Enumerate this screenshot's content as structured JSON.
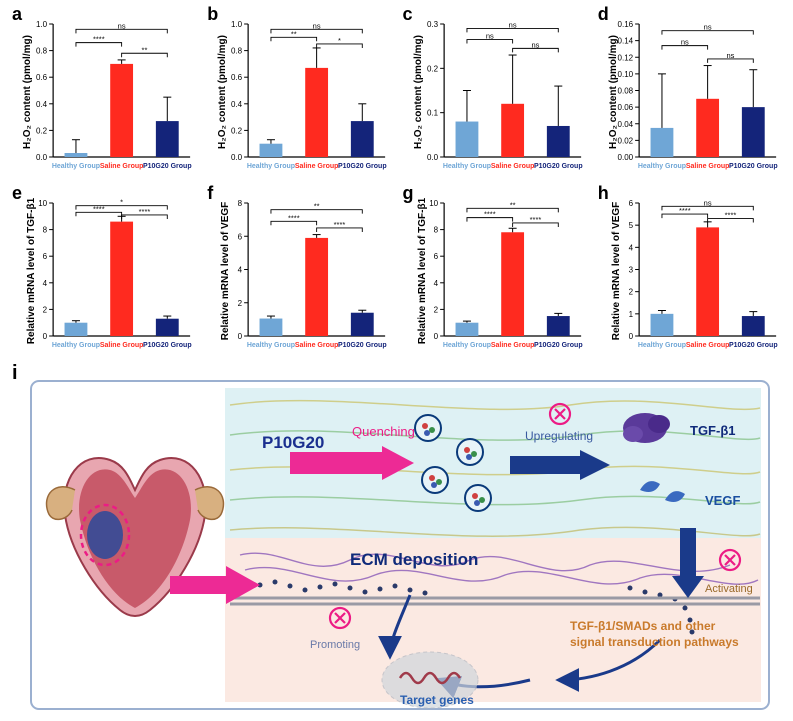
{
  "groups": [
    "Healthy Group",
    "Saline Group",
    "P10G20 Group"
  ],
  "group_colors": [
    "#6fa6d6",
    "#ff2a1f",
    "#14247a"
  ],
  "chart_common": {
    "bar_width": 0.5,
    "background_color": "#ffffff",
    "axis_color": "#000000",
    "label_fontsize": 8,
    "panel_letter_fontsize": 18
  },
  "sig_labels": {
    "ns": "ns",
    "star1": "*",
    "star2": "**",
    "star4": "****"
  },
  "panels": {
    "a": {
      "ylabel": "H₂O₂ content (pmol/mg)",
      "ylim": [
        0,
        1.0
      ],
      "ytick_step": 0.2,
      "values": [
        0.03,
        0.7,
        0.27
      ],
      "errors": [
        0.1,
        0.03,
        0.18
      ],
      "sigs": [
        {
          "from": 0,
          "to": 2,
          "label": "ns",
          "y": 0.96
        },
        {
          "from": 0,
          "to": 1,
          "label": "****",
          "y": 0.86
        },
        {
          "from": 1,
          "to": 2,
          "label": "**",
          "y": 0.78
        }
      ]
    },
    "b": {
      "ylabel": "H₂O₂ content (pmol/mg)",
      "ylim": [
        0,
        1.0
      ],
      "ytick_step": 0.2,
      "values": [
        0.1,
        0.67,
        0.27
      ],
      "errors": [
        0.03,
        0.15,
        0.13
      ],
      "sigs": [
        {
          "from": 0,
          "to": 2,
          "label": "ns",
          "y": 0.96
        },
        {
          "from": 0,
          "to": 1,
          "label": "**",
          "y": 0.9
        },
        {
          "from": 1,
          "to": 2,
          "label": "*",
          "y": 0.85
        }
      ]
    },
    "c": {
      "ylabel": "H₂O₂ content (pmol/mg)",
      "ylim": [
        0,
        0.3
      ],
      "ytick_step": 0.1,
      "values": [
        0.08,
        0.12,
        0.07
      ],
      "errors": [
        0.07,
        0.11,
        0.09
      ],
      "sigs": [
        {
          "from": 0,
          "to": 2,
          "label": "ns",
          "y": 0.29
        },
        {
          "from": 0,
          "to": 1,
          "label": "ns",
          "y": 0.265
        },
        {
          "from": 1,
          "to": 2,
          "label": "ns",
          "y": 0.245
        }
      ]
    },
    "d": {
      "ylabel": "H₂O₂ content (pmol/mg)",
      "ylim": [
        0,
        0.16
      ],
      "ytick_step": 0.02,
      "values": [
        0.035,
        0.07,
        0.06
      ],
      "errors": [
        0.065,
        0.04,
        0.045
      ],
      "sigs": [
        {
          "from": 0,
          "to": 2,
          "label": "ns",
          "y": 0.152
        },
        {
          "from": 0,
          "to": 1,
          "label": "ns",
          "y": 0.134
        },
        {
          "from": 1,
          "to": 2,
          "label": "ns",
          "y": 0.118
        }
      ]
    },
    "e": {
      "ylabel": "Relative mRNA level of TGF-β1",
      "ylim": [
        0,
        10
      ],
      "ytick_step": 2,
      "values": [
        1.0,
        8.6,
        1.3
      ],
      "errors": [
        0.15,
        0.4,
        0.2
      ],
      "sigs": [
        {
          "from": 0,
          "to": 2,
          "label": "*",
          "y": 9.8
        },
        {
          "from": 0,
          "to": 1,
          "label": "****",
          "y": 9.3
        },
        {
          "from": 1,
          "to": 2,
          "label": "****",
          "y": 9.1
        }
      ]
    },
    "f": {
      "ylabel": "Relative mRNA level of VEGF",
      "ylim": [
        0,
        8
      ],
      "ytick_step": 2,
      "values": [
        1.05,
        5.9,
        1.4
      ],
      "errors": [
        0.15,
        0.2,
        0.15
      ],
      "sigs": [
        {
          "from": 0,
          "to": 2,
          "label": "**",
          "y": 7.6
        },
        {
          "from": 0,
          "to": 1,
          "label": "****",
          "y": 6.9
        },
        {
          "from": 1,
          "to": 2,
          "label": "****",
          "y": 6.5
        }
      ]
    },
    "g": {
      "ylabel": "Relative mRNA level of TGF-β1",
      "ylim": [
        0,
        10
      ],
      "ytick_step": 2,
      "values": [
        1.0,
        7.8,
        1.5
      ],
      "errors": [
        0.12,
        0.3,
        0.2
      ],
      "sigs": [
        {
          "from": 0,
          "to": 2,
          "label": "**",
          "y": 9.6
        },
        {
          "from": 0,
          "to": 1,
          "label": "****",
          "y": 8.9
        },
        {
          "from": 1,
          "to": 2,
          "label": "****",
          "y": 8.5
        }
      ]
    },
    "h": {
      "ylabel": "Relative mRNA level of VEGF",
      "ylim": [
        0,
        6
      ],
      "ytick_step": 1,
      "values": [
        1.0,
        4.9,
        0.9
      ],
      "errors": [
        0.15,
        0.25,
        0.2
      ],
      "sigs": [
        {
          "from": 0,
          "to": 2,
          "label": "ns",
          "y": 5.85
        },
        {
          "from": 0,
          "to": 1,
          "label": "****",
          "y": 5.5
        },
        {
          "from": 1,
          "to": 2,
          "label": "****",
          "y": 5.3
        }
      ]
    }
  },
  "panel_i": {
    "background_top": "#def1f4",
    "background_bottom": "#fbe9e2",
    "border_color": "#4a6aa0",
    "labels": {
      "p10g20": "P10G20",
      "quenching": "Quenching",
      "upregulating": "Upregulating",
      "tgfb1": "TGF-β1",
      "vegf": "VEGF",
      "ecm": "ECM deposition",
      "activating": "Activating",
      "promoting": "Promoting",
      "target_genes": "Target genes",
      "pathway": "TGF-β1/SMADs and other signal transduction pathways"
    },
    "colors": {
      "p10g20": "#1a2f8f",
      "quenching": "#ec1c85",
      "tgfb1_text": "#0f2a7a",
      "vegf_text": "#1a4fa0",
      "ecm_text": "#0f2a7a",
      "pathway_text": "#c97a2b",
      "activating_text": "#9a6a2a",
      "promoting_text": "#6a7aa8",
      "target_text": "#2a5fb0",
      "upregulating_text": "#3a5aa0",
      "uterus_main": "#c85a6a",
      "uterus_highlight": "#e8a6b0",
      "arrow_pink": "#ed2a95",
      "arrow_navy": "#1a3a8a",
      "cross_circle": "#ec1c85",
      "protein_purple": "#5a3a9a",
      "protein_blue": "#3a6ac0",
      "dna": "#a03a4a",
      "nucleus_fill": "#d0d6dc",
      "membrane": "#9a9aa5",
      "ros_ring": "#0a3a7a"
    }
  }
}
